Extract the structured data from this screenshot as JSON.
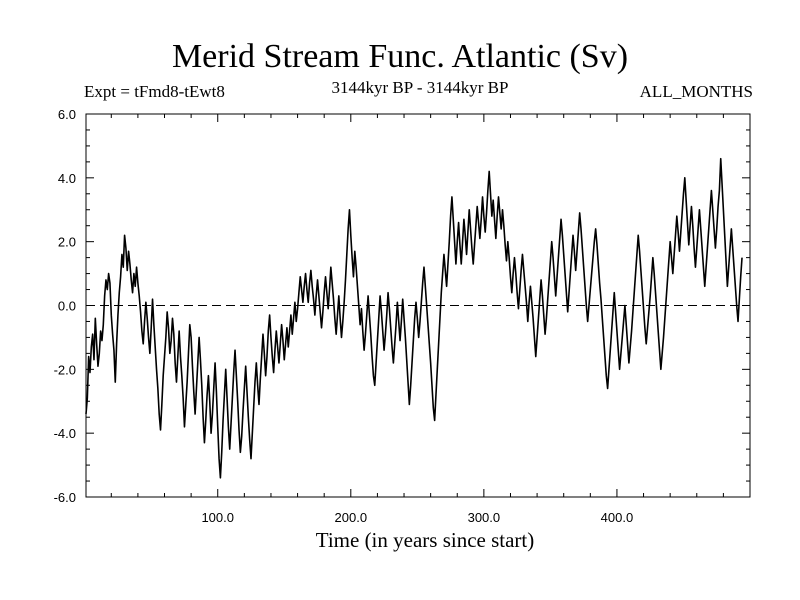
{
  "chart_data": {
    "type": "line",
    "title": "Merid Stream Func. Atlantic (Sv)",
    "subtitle_left": "Expt = tFmd8-tEwt8",
    "subtitle_center": "3144kyr BP - 3144kyr BP",
    "subtitle_right": "ALL_MONTHS",
    "xlabel": "Time (in years since start)",
    "ylabel": "",
    "xlim": [
      1,
      500
    ],
    "ylim": [
      -6,
      6
    ],
    "xticks": [
      100,
      200,
      300,
      400
    ],
    "xtick_labels": [
      "100.0",
      "200.0",
      "300.0",
      "400.0"
    ],
    "yticks": [
      -6,
      -4,
      -2,
      0,
      2,
      4,
      6
    ],
    "ytick_labels": [
      "-6.0",
      "-4.0",
      "-2.0",
      "0.0",
      "2.0",
      "4.0",
      "6.0"
    ],
    "reference_line": {
      "y": 0,
      "style": "dashed"
    },
    "series": [
      {
        "name": "Merid Stream Func. Atlantic",
        "color": "#000000",
        "x_start": 1,
        "x_step": 1,
        "values": [
          -3.4,
          -2.9,
          -1.6,
          -2.1,
          -1.3,
          -0.9,
          -1.7,
          -0.4,
          -1.2,
          -1.9,
          -1.5,
          -0.8,
          -1.1,
          -0.6,
          0.3,
          0.8,
          0.5,
          1.0,
          0.7,
          -0.3,
          -0.9,
          -1.4,
          -2.4,
          -1.2,
          -0.3,
          0.4,
          0.9,
          1.6,
          1.2,
          2.2,
          1.8,
          1.1,
          1.7,
          1.3,
          0.8,
          0.4,
          1.0,
          0.6,
          1.2,
          0.7,
          0.3,
          -0.2,
          -0.8,
          -1.2,
          -0.5,
          0.1,
          -0.4,
          -1.0,
          -1.5,
          -0.7,
          0.2,
          -0.6,
          -1.3,
          -2.0,
          -2.6,
          -3.4,
          -3.9,
          -3.1,
          -2.2,
          -1.6,
          -1.0,
          -0.2,
          -0.7,
          -1.5,
          -1.1,
          -0.4,
          -0.9,
          -1.8,
          -2.4,
          -1.6,
          -0.8,
          -1.6,
          -2.2,
          -2.9,
          -3.8,
          -3.1,
          -2.4,
          -1.5,
          -0.6,
          -1.0,
          -1.9,
          -2.7,
          -3.4,
          -2.6,
          -1.8,
          -1.0,
          -1.7,
          -2.5,
          -3.5,
          -4.3,
          -3.6,
          -2.8,
          -2.2,
          -3.0,
          -4.0,
          -3.4,
          -2.6,
          -1.8,
          -2.7,
          -3.8,
          -4.8,
          -5.4,
          -4.6,
          -3.6,
          -2.8,
          -2.0,
          -2.9,
          -3.8,
          -4.5,
          -3.7,
          -2.9,
          -2.1,
          -1.4,
          -2.2,
          -3.0,
          -3.9,
          -4.6,
          -4.1,
          -3.3,
          -2.6,
          -1.9,
          -2.7,
          -3.5,
          -4.2,
          -4.8,
          -4.0,
          -3.2,
          -2.4,
          -1.8,
          -2.5,
          -3.1,
          -2.3,
          -1.6,
          -0.9,
          -1.5,
          -2.2,
          -1.6,
          -0.8,
          -0.3,
          -1.0,
          -1.6,
          -2.1,
          -1.4,
          -0.8,
          -1.3,
          -1.8,
          -1.2,
          -0.6,
          -1.1,
          -1.7,
          -1.2,
          -0.7,
          -1.3,
          -0.8,
          -0.3,
          -0.9,
          -0.4,
          0.1,
          -0.5,
          -0.1,
          0.4,
          0.9,
          0.5,
          0.1,
          0.6,
          1.0,
          0.5,
          0.1,
          0.7,
          1.1,
          0.6,
          0.2,
          -0.3,
          0.3,
          0.8,
          0.3,
          -0.2,
          -0.7,
          -0.2,
          0.4,
          0.9,
          0.4,
          -0.1,
          0.5,
          1.2,
          0.7,
          0.2,
          -0.4,
          -0.9,
          -0.3,
          0.3,
          -0.4,
          -1.0,
          -0.5,
          0.1,
          0.8,
          1.6,
          2.4,
          3.0,
          2.2,
          1.5,
          0.9,
          1.7,
          1.2,
          0.6,
          0.0,
          -0.6,
          -0.1,
          -0.8,
          -1.4,
          -0.9,
          -0.3,
          0.3,
          -0.3,
          -0.9,
          -1.6,
          -2.2,
          -2.5,
          -1.8,
          -1.1,
          -0.4,
          0.3,
          -0.2,
          -0.8,
          -1.4,
          -0.9,
          -0.3,
          0.4,
          -0.1,
          -0.7,
          -1.3,
          -1.8,
          -1.2,
          -0.6,
          0.1,
          -0.5,
          -1.1,
          -0.5,
          0.2,
          -0.4,
          -1.0,
          -1.7,
          -2.4,
          -3.1,
          -2.5,
          -1.8,
          -1.1,
          -0.4,
          0.1,
          -0.4,
          -1.0,
          -0.5,
          0.1,
          0.7,
          1.2,
          0.6,
          0.0,
          -0.6,
          -1.2,
          -1.8,
          -2.5,
          -3.2,
          -3.6,
          -2.8,
          -2.0,
          -1.2,
          -0.4,
          0.4,
          1.0,
          1.6,
          1.1,
          0.6,
          1.3,
          2.0,
          2.8,
          3.4,
          2.7,
          2.0,
          1.3,
          2.0,
          2.6,
          1.9,
          1.3,
          2.0,
          2.7,
          2.2,
          1.6,
          2.3,
          3.0,
          2.4,
          1.8,
          1.3,
          1.9,
          2.5,
          3.1,
          2.6,
          2.1,
          2.7,
          3.4,
          2.8,
          2.3,
          2.9,
          3.6,
          4.2,
          3.5,
          2.8,
          3.3,
          2.7,
          2.1,
          2.8,
          3.4,
          2.9,
          2.4,
          3.0,
          2.5,
          1.9,
          1.4,
          2.0,
          1.5,
          0.9,
          0.4,
          1.0,
          1.5,
          1.0,
          0.4,
          -0.1,
          0.5,
          1.1,
          1.6,
          1.1,
          0.6,
          0.1,
          -0.5,
          0.1,
          0.6,
          0.1,
          -0.4,
          -1.0,
          -1.6,
          -1.0,
          -0.4,
          0.2,
          0.8,
          0.3,
          -0.3,
          -0.9,
          -0.4,
          0.2,
          0.8,
          1.4,
          2.0,
          1.5,
          0.9,
          0.3,
          0.9,
          1.5,
          2.1,
          2.7,
          2.2,
          1.6,
          1.0,
          0.4,
          -0.2,
          0.4,
          1.0,
          1.6,
          2.2,
          1.7,
          1.1,
          1.7,
          2.3,
          2.9,
          2.4,
          1.8,
          1.2,
          0.6,
          0.0,
          -0.5,
          0.0,
          0.5,
          1.0,
          1.5,
          2.0,
          2.4,
          1.9,
          1.3,
          0.7,
          0.2,
          -0.4,
          -1.0,
          -1.6,
          -2.2,
          -2.6,
          -2.0,
          -1.4,
          -0.8,
          -0.2,
          0.4,
          -0.2,
          -0.8,
          -1.4,
          -2.0,
          -1.5,
          -1.0,
          -0.5,
          0.0,
          -0.6,
          -1.2,
          -1.8,
          -1.3,
          -0.8,
          -0.2,
          0.4,
          1.0,
          1.6,
          2.2,
          1.7,
          1.1,
          0.5,
          -0.1,
          -0.7,
          -1.2,
          -0.7,
          -0.2,
          0.3,
          0.9,
          1.5,
          1.0,
          0.4,
          -0.2,
          -0.8,
          -1.4,
          -2.0,
          -1.5,
          -1.0,
          -0.4,
          0.2,
          0.8,
          1.4,
          2.0,
          1.5,
          1.0,
          1.6,
          2.2,
          2.8,
          2.3,
          1.7,
          2.3,
          2.9,
          3.5,
          4.0,
          3.3,
          2.6,
          1.9,
          2.5,
          3.1,
          2.5,
          1.8,
          1.2,
          1.8,
          2.4,
          3.0,
          2.4,
          1.8,
          1.2,
          0.6,
          1.2,
          1.8,
          2.4,
          3.0,
          3.6,
          3.0,
          2.4,
          1.8,
          2.4,
          3.1,
          3.6,
          4.6,
          3.8,
          3.0,
          2.2,
          1.4,
          0.6,
          1.2,
          1.8,
          2.4,
          1.8,
          1.2,
          0.6,
          0.0,
          -0.5,
          0.2,
          0.9,
          1.5
        ]
      }
    ]
  }
}
